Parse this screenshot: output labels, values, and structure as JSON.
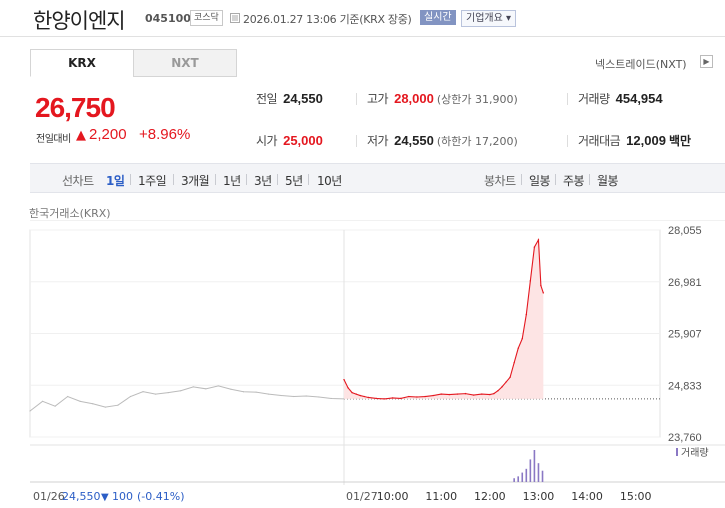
{
  "header": {
    "stock_name": "한양이엔지",
    "stock_code": "045100",
    "market": "코스닥",
    "timestamp": "2026.01.27 13:06 기준(KRX 장중)",
    "realtime": "실시간",
    "company_info": "기업개요 ▾"
  },
  "tabs": [
    {
      "label": "KRX"
    },
    {
      "label": "NXT"
    }
  ],
  "nextrade_link": "넥스트레이드(NXT)",
  "price": {
    "current": "26,750",
    "change_label": "전일대비",
    "change_arrow": "▲",
    "change_value": "2,200",
    "change_rate": "+8.96%"
  },
  "stats": {
    "prev_close": {
      "label": "전일",
      "value": "24,550"
    },
    "high": {
      "label": "고가",
      "value": "28,000",
      "sub": "(상한가 31,900)"
    },
    "volume": {
      "label": "거래량",
      "value": "454,954"
    },
    "open": {
      "label": "시가",
      "value": "25,000"
    },
    "low": {
      "label": "저가",
      "value": "24,550",
      "sub": "(하한가 17,200)"
    },
    "turnover": {
      "label": "거래대금",
      "value": "12,009",
      "unit": "백만"
    }
  },
  "periods": {
    "chart_type_label": "선차트",
    "items": [
      "1일",
      "1주일",
      "3개월",
      "1년",
      "3년",
      "5년",
      "10년"
    ],
    "selected": "1일",
    "candle_label": "봉차트",
    "candle_items": [
      "일봉",
      "주봉",
      "월봉"
    ]
  },
  "exchange_label": "한국거래소(KRX)",
  "colors": {
    "up": "#e4171f",
    "prev_line": "#bbbbbb",
    "volume": "#8a78c4"
  },
  "chart_data": {
    "type": "line",
    "title": "",
    "ylabel": "",
    "yticks": [
      "28,055",
      "26,981",
      "25,907",
      "24,833",
      "23,760"
    ],
    "ylim": [
      23760,
      28055
    ],
    "xticks": [
      "10:00",
      "11:00",
      "12:00",
      "13:00",
      "14:00",
      "15:00"
    ],
    "xlim": [
      "09:00",
      "15:30"
    ],
    "prev_close": 24550,
    "volume_label": "거래량",
    "series": [
      {
        "x": [
          "09:00",
          "09:05",
          "09:10",
          "09:15",
          "09:20",
          "09:25",
          "09:30",
          "09:40",
          "09:50",
          "10:00",
          "10:10",
          "10:20",
          "10:30",
          "10:40",
          "10:50",
          "11:00",
          "11:10",
          "11:20",
          "11:30",
          "11:40",
          "11:50",
          "12:00",
          "12:05",
          "12:10",
          "12:15",
          "12:20",
          "12:25",
          "12:30",
          "12:35",
          "12:40",
          "12:45",
          "12:50",
          "12:55",
          "13:00",
          "13:03",
          "13:06"
        ],
        "y": [
          24950,
          24780,
          24680,
          24650,
          24620,
          24600,
          24580,
          24560,
          24550,
          24570,
          24560,
          24600,
          24590,
          24600,
          24620,
          24650,
          24640,
          24650,
          24660,
          24630,
          24650,
          24640,
          24660,
          24720,
          24800,
          24900,
          25000,
          25300,
          25600,
          25800,
          26300,
          27000,
          27700,
          27850,
          26900,
          26750
        ]
      }
    ],
    "previous_day": {
      "date": "01/26",
      "close": "24,550",
      "change_arrow": "▼",
      "change": "100",
      "rate": "(-0.41%)",
      "values": [
        24300,
        24500,
        24400,
        24600,
        24500,
        24450,
        24380,
        24420,
        24600,
        24700,
        24650,
        24680,
        24720,
        24800,
        24760,
        24820,
        24750,
        24700,
        24690,
        24650,
        24620,
        24600,
        24610,
        24590,
        24560,
        24550
      ]
    },
    "prev_axis_label": "01/26",
    "today_axis_label": "01/27",
    "volume": {
      "x": [
        "12:30",
        "12:35",
        "12:40",
        "12:45",
        "12:50",
        "12:55",
        "13:00",
        "13:05"
      ],
      "values": [
        4,
        6,
        10,
        14,
        24,
        34,
        20,
        12
      ]
    }
  }
}
